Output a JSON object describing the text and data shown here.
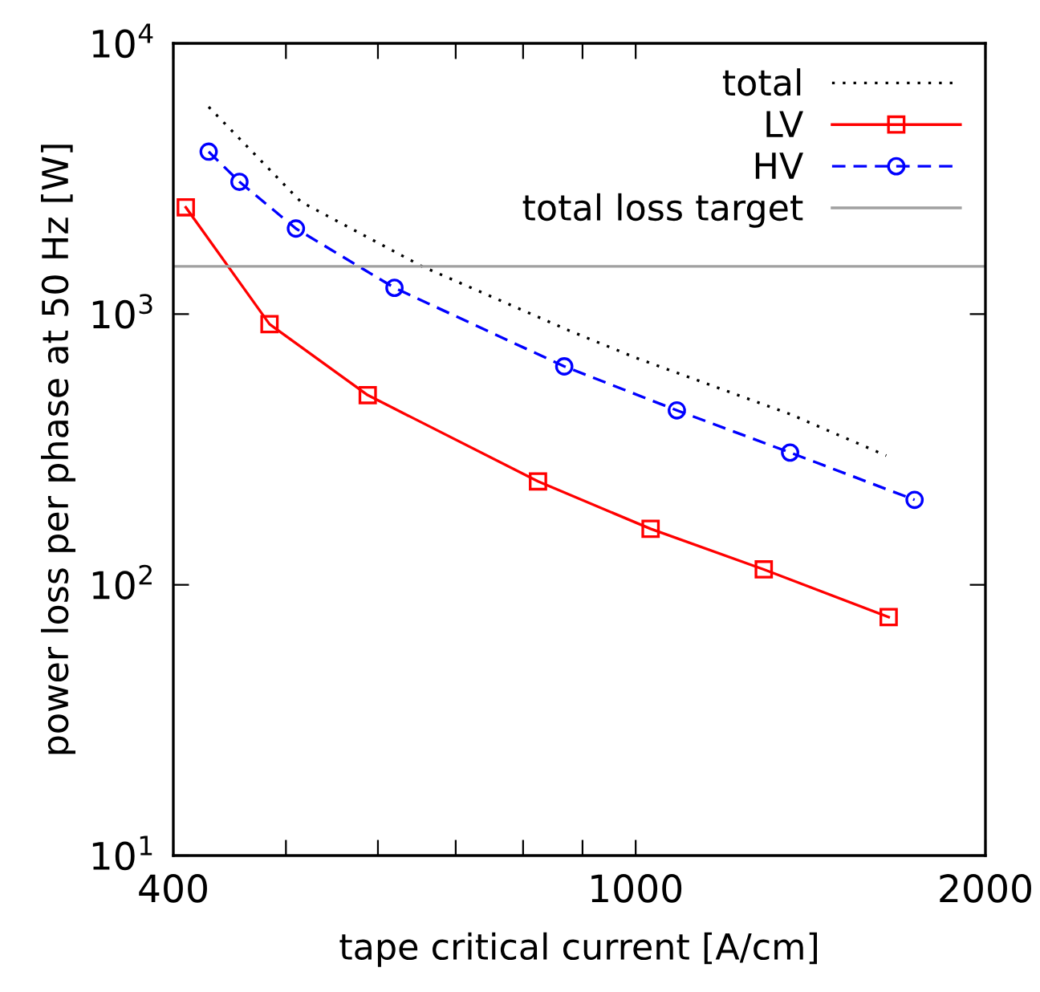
{
  "chart_data": {
    "type": "line",
    "xlabel": "tape critical current [A/cm]",
    "ylabel": "power loss per phase at 50 Hz [W]",
    "log": "xy",
    "xlim": [
      400,
      2000
    ],
    "ylim": [
      10,
      10000
    ],
    "xticks": [
      400,
      {
        "value": 500,
        "label": null
      },
      {
        "value": 600,
        "label": null
      },
      {
        "value": 700,
        "label": null
      },
      {
        "value": 800,
        "label": null
      },
      {
        "value": 900,
        "label": null
      },
      1000,
      2000
    ],
    "yticks": [
      {
        "value": 10,
        "label": "10$^{1}$"
      },
      {
        "value": 100,
        "label": "10$^{2}$"
      },
      {
        "value": 1000,
        "label": "10$^{3}$"
      },
      {
        "value": 10000,
        "label": "10$^{4}$"
      }
    ],
    "grid": false,
    "legend": "top right",
    "series": [
      {
        "name": "total",
        "color": "#000000",
        "line_style": "dotted",
        "marker": "none",
        "x": [
          429,
          515,
          655,
          876,
          1000,
          1358,
          1643
        ],
        "values": [
          5825,
          2600,
          1500,
          870,
          690,
          427,
          300
        ]
      },
      {
        "name": "LV",
        "color": "#ff0000",
        "line_style": "solid",
        "marker": "square",
        "x": [
          410,
          484,
          588,
          824,
          1030,
          1289,
          1651
        ],
        "values": [
          2480,
          918,
          502,
          241,
          161,
          114,
          76
        ]
      },
      {
        "name": "HV",
        "color": "#0000ff",
        "line_style": "dashed",
        "marker": "circle",
        "x": [
          429,
          456,
          510,
          620,
          868,
          1085,
          1358,
          1738
        ],
        "values": [
          3980,
          3080,
          2070,
          1250,
          641,
          441,
          308,
          206
        ]
      }
    ],
    "ref_lines": [
      {
        "axis": "y",
        "value": 1500,
        "label": "total loss target",
        "color": "#a0a0a0",
        "line_style": "solid"
      }
    ]
  }
}
